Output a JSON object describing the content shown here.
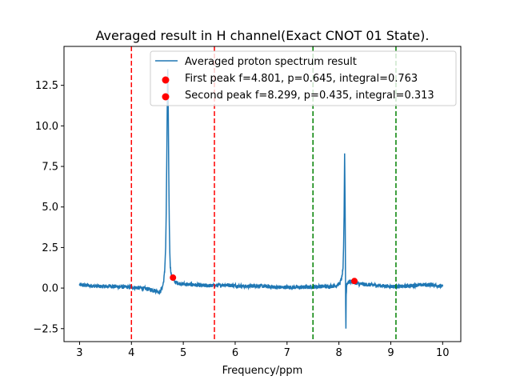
{
  "chart_data": {
    "type": "line",
    "title": "Averaged result in H channel(Exact CNOT 01 State).",
    "xlabel": "Frequency/ppm",
    "ylabel": "",
    "xlim": [
      2.7,
      10.35
    ],
    "ylim": [
      -3.3,
      14.9
    ],
    "x_ticks": [
      3,
      4,
      5,
      6,
      7,
      8,
      9,
      10
    ],
    "y_ticks": [
      -2.5,
      0.0,
      2.5,
      5.0,
      7.5,
      10.0,
      12.5
    ],
    "y_tick_labels": [
      "−2.5",
      "0.0",
      "2.5",
      "5.0",
      "7.5",
      "10.0",
      "12.5"
    ],
    "grid": false,
    "legend_position": "top-right",
    "series": [
      {
        "name": "Averaged proton spectrum result",
        "color": "#1f77b4",
        "x": [
          3.0,
          3.2,
          3.4,
          3.6,
          3.8,
          4.0,
          4.2,
          4.4,
          4.5,
          4.55,
          4.6,
          4.62,
          4.64,
          4.66,
          4.67,
          4.68,
          4.69,
          4.7,
          4.71,
          4.72,
          4.73,
          4.74,
          4.75,
          4.77,
          4.8,
          4.85,
          4.9,
          5.0,
          5.2,
          5.4,
          5.6,
          5.8,
          6.0,
          6.2,
          6.4,
          6.6,
          6.8,
          7.0,
          7.2,
          7.4,
          7.6,
          7.8,
          7.95,
          8.02,
          8.06,
          8.08,
          8.09,
          8.1,
          8.11,
          8.12,
          8.13,
          8.135,
          8.14,
          8.15,
          8.16,
          8.18,
          8.2,
          8.25,
          8.3,
          8.4,
          8.6,
          8.8,
          9.0,
          9.2,
          9.4,
          9.6,
          9.8,
          10.0
        ],
        "y": [
          0.2,
          0.15,
          0.1,
          0.12,
          0.08,
          0.05,
          0.0,
          -0.1,
          -0.2,
          -0.25,
          0.1,
          0.4,
          1.0,
          2.5,
          4.5,
          7.5,
          11.0,
          13.5,
          11.0,
          7.0,
          4.0,
          2.2,
          1.3,
          0.8,
          0.5,
          0.35,
          0.3,
          0.25,
          0.2,
          0.15,
          0.15,
          0.2,
          0.15,
          0.1,
          0.15,
          0.1,
          0.05,
          0.05,
          0.05,
          0.05,
          0.1,
          0.1,
          0.15,
          0.3,
          0.7,
          1.3,
          2.5,
          4.5,
          8.3,
          5.0,
          -1.0,
          -2.5,
          -0.5,
          0.2,
          0.3,
          0.35,
          0.4,
          0.4,
          0.35,
          0.25,
          0.2,
          0.15,
          0.1,
          0.1,
          0.15,
          0.2,
          0.2,
          0.1
        ],
        "noise_amplitude": 0.12
      },
      {
        "name": "First peak f=4.801, p=0.645, integral=0.763",
        "type": "scatter",
        "color": "#ff0000",
        "x": [
          4.801
        ],
        "y": [
          0.645
        ]
      },
      {
        "name": "Second peak f=8.299, p=0.435, integral=0.313",
        "type": "scatter",
        "color": "#ff0000",
        "x": [
          8.299
        ],
        "y": [
          0.435
        ]
      }
    ],
    "vertical_lines": [
      {
        "x": 4.0,
        "color": "#ff0000",
        "style": "dashed"
      },
      {
        "x": 5.6,
        "color": "#ff0000",
        "style": "dashed"
      },
      {
        "x": 7.5,
        "color": "#008000",
        "style": "dashed"
      },
      {
        "x": 9.1,
        "color": "#008000",
        "style": "dashed"
      }
    ]
  }
}
